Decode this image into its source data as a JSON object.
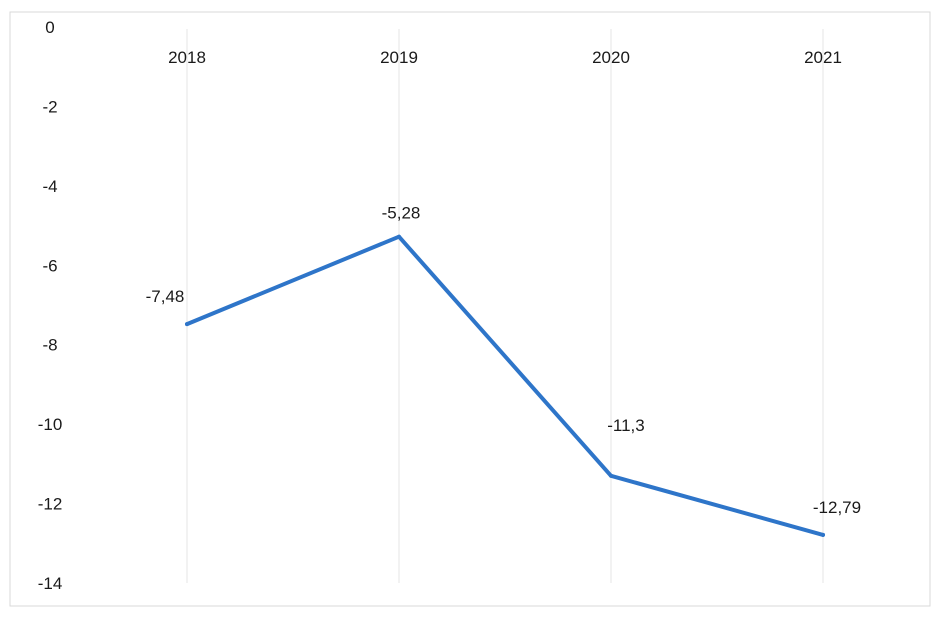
{
  "chart_data": {
    "type": "line",
    "title": "",
    "xlabel": "",
    "ylabel": "",
    "categories": [
      "2018",
      "2019",
      "2020",
      "2021"
    ],
    "series": [
      {
        "values": [
          -7.48,
          -5.28,
          -11.3,
          -12.79
        ],
        "data_labels": [
          "-7,48",
          "-5,28",
          "-11,3",
          "-12,79"
        ],
        "color": "#2e75c9"
      }
    ],
    "ylim": [
      -14,
      0
    ],
    "yticks": [
      0,
      -2,
      -4,
      -6,
      -8,
      -10,
      -12,
      -14
    ],
    "ytick_labels": [
      "0",
      "-2",
      "-4",
      "-6",
      "-8",
      "-10",
      "-12",
      "-14"
    ],
    "x_axis_position": "top",
    "vertical_grid": true,
    "legend": "none"
  }
}
